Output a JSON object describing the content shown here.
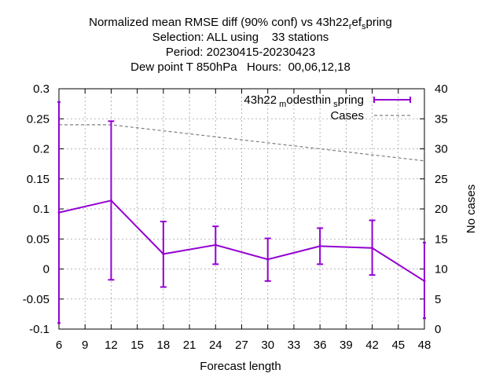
{
  "chart_data": {
    "type": "line",
    "title_lines": [
      "Normalized mean RMSE diff (90% conf) vs 43h22_ref_spring",
      "Selection: ALL using    33 stations",
      "Period: 20230415-20230423",
      "Dew point T 850hPa   Hours:  00,06,12,18"
    ],
    "xlabel": "Forecast length",
    "ylabel": "",
    "y2label": "No cases",
    "xlim": [
      6,
      48
    ],
    "ylim": [
      -0.1,
      0.3
    ],
    "y2lim": [
      0,
      40
    ],
    "xticks": [
      "6",
      "9",
      "12",
      "15",
      "18",
      "21",
      "24",
      "27",
      "30",
      "33",
      "36",
      "39",
      "42",
      "45",
      "48"
    ],
    "yticks": [
      "-0.1",
      "-0.05",
      "0",
      "0.05",
      "0.1",
      "0.15",
      "0.2",
      "0.25",
      "0.3"
    ],
    "y2ticks": [
      "0",
      "5",
      "10",
      "15",
      "20",
      "25",
      "30",
      "35",
      "40"
    ],
    "grid": true,
    "legend_position": "top-right",
    "series": [
      {
        "name": "43h22_modesthin_spring",
        "axis": "left",
        "color": "#9400d3",
        "x": [
          6,
          12,
          18,
          24,
          30,
          36,
          42,
          48
        ],
        "values": [
          0.094,
          0.114,
          0.025,
          0.04,
          0.016,
          0.038,
          0.035,
          -0.02
        ],
        "err_low": [
          -0.09,
          -0.018,
          -0.03,
          0.008,
          -0.02,
          0.008,
          -0.01,
          -0.082
        ],
        "err_high": [
          0.278,
          0.246,
          0.079,
          0.071,
          0.051,
          0.068,
          0.081,
          0.044
        ]
      },
      {
        "name": "Cases",
        "axis": "right",
        "color": "#808080",
        "dashed": true,
        "x": [
          6,
          12,
          18,
          24,
          30,
          36,
          42,
          48
        ],
        "values": [
          34,
          34,
          33,
          32,
          31,
          30,
          29,
          28
        ]
      }
    ]
  }
}
